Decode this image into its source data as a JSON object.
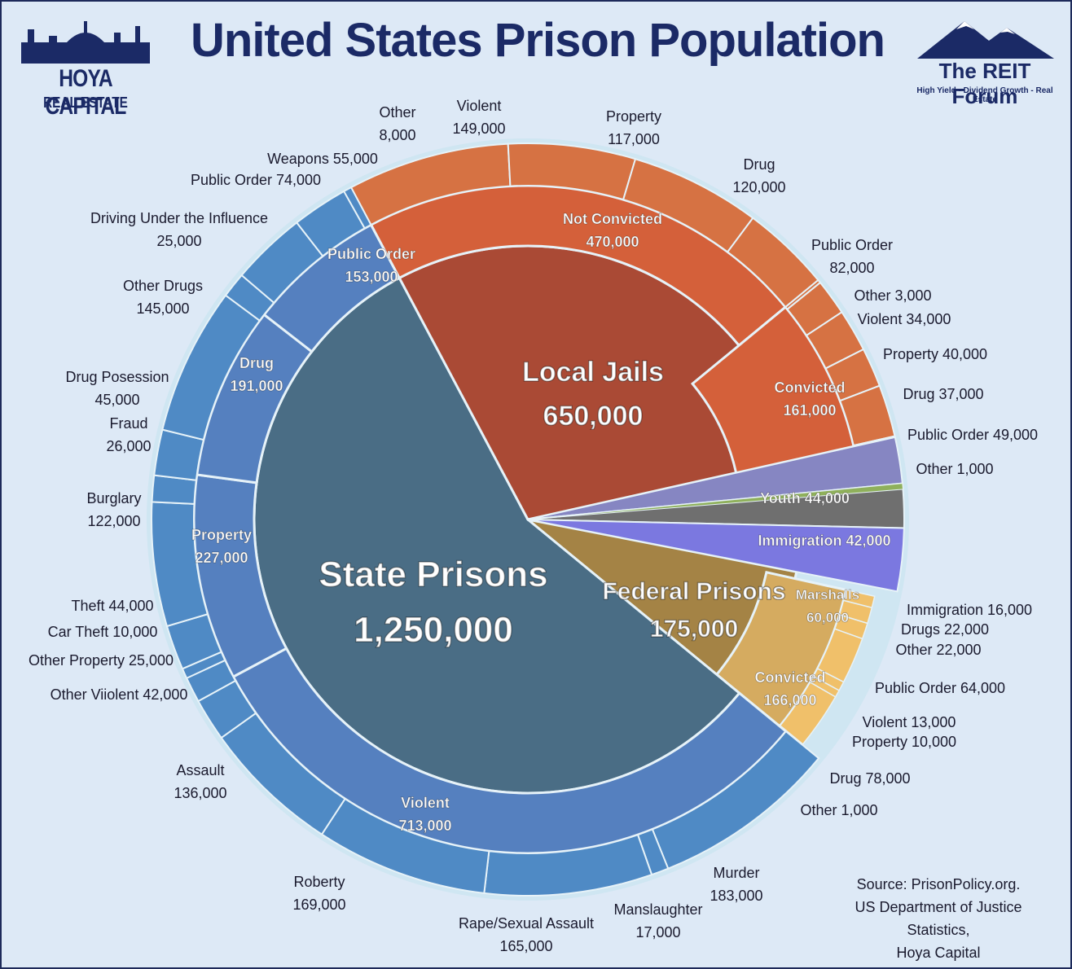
{
  "title": "United States Prison Population",
  "logo_left": {
    "line1": "HOYA CAPITAL",
    "line2": "REAL ESTATE"
  },
  "logo_right": {
    "line1": "The REIT Forum",
    "line2": "High Yield - Dividend Growth - Real Estate"
  },
  "source_lines": [
    "Source: PrisonPolicy.org.",
    "US Department of Justice Statistics,",
    "Hoya Capital"
  ],
  "colors": {
    "state": "#4a6d85",
    "state_mid": "#5580bf",
    "state_outer": "#4f8ac5",
    "jail": "#aa4a35",
    "jail_mid": "#d4603a",
    "jail_outer": "#d67243",
    "federal": "#a48345",
    "federal_mid": "#d5ab60",
    "federal_outer": "#f0c06a",
    "youth": "#8686c2",
    "immigration": "#6f6f6f",
    "marshalls": "#7b78e0",
    "other_green": "#8fb05b"
  },
  "chart_data": {
    "type": "pie",
    "subtype": "sunburst",
    "title": "United States Prison Population",
    "inner": [
      {
        "label": "State Prisons",
        "value": 1250000,
        "value_text": "1,250,000"
      },
      {
        "label": "Local Jails",
        "value": 650000,
        "value_text": "650,000"
      },
      {
        "label": "Federal Prisons",
        "value": 175000,
        "value_text": "175,000"
      },
      {
        "label": "Marshalls",
        "value": 60000,
        "value_text": "60,000"
      },
      {
        "label": "Immigration",
        "value": 42000,
        "value_text": "42,000"
      },
      {
        "label": "Youth",
        "value": 44000,
        "value_text": "44,000"
      }
    ],
    "middle": [
      {
        "parent": "State Prisons",
        "label": "Violent",
        "value": 713000,
        "value_text": "713,000"
      },
      {
        "parent": "State Prisons",
        "label": "Property",
        "value": 227000,
        "value_text": "227,000"
      },
      {
        "parent": "State Prisons",
        "label": "Drug",
        "value": 191000,
        "value_text": "191,000"
      },
      {
        "parent": "State Prisons",
        "label": "Public Order",
        "value": 153000,
        "value_text": "153,000"
      },
      {
        "parent": "Local Jails",
        "label": "Not Convicted",
        "value": 470000,
        "value_text": "470,000"
      },
      {
        "parent": "Local Jails",
        "label": "Convicted",
        "value": 161000,
        "value_text": "161,000"
      },
      {
        "parent": "Federal Prisons",
        "label": "Convicted",
        "value": 166000,
        "value_text": "166,000"
      }
    ],
    "outer": [
      {
        "parent": "State Prisons",
        "label": "Murder",
        "value": 183000,
        "value_text": "183,000"
      },
      {
        "parent": "State Prisons",
        "label": "Manslaughter",
        "value": 17000,
        "value_text": "17,000"
      },
      {
        "parent": "State Prisons",
        "label": "Rape/Sexual Assault",
        "value": 165000,
        "value_text": "165,000"
      },
      {
        "parent": "State Prisons",
        "label": "Roberty",
        "value": 169000,
        "value_text": "169,000"
      },
      {
        "parent": "State Prisons",
        "label": "Assault",
        "value": 136000,
        "value_text": "136,000"
      },
      {
        "parent": "State Prisons",
        "label": "Other Viiolent",
        "value": 42000,
        "value_text": "42,000"
      },
      {
        "parent": "State Prisons",
        "label": "Other Property",
        "value": 25000,
        "value_text": "25,000"
      },
      {
        "parent": "State Prisons",
        "label": "Car Theft",
        "value": 10000,
        "value_text": "10,000"
      },
      {
        "parent": "State Prisons",
        "label": "Theft",
        "value": 44000,
        "value_text": "44,000"
      },
      {
        "parent": "State Prisons",
        "label": "Burglary",
        "value": 122000,
        "value_text": "122,000"
      },
      {
        "parent": "State Prisons",
        "label": "Fraud",
        "value": 26000,
        "value_text": "26,000"
      },
      {
        "parent": "State Prisons",
        "label": "Drug Posession",
        "value": 45000,
        "value_text": "45,000"
      },
      {
        "parent": "State Prisons",
        "label": "Other Drugs",
        "value": 145000,
        "value_text": "145,000"
      },
      {
        "parent": "State Prisons",
        "label": "Driving Under the Influence",
        "value": 25000,
        "value_text": "25,000"
      },
      {
        "parent": "State Prisons",
        "label": "Public Order",
        "value": 74000,
        "value_text": "74,000"
      },
      {
        "parent": "State Prisons",
        "label": "Weapons",
        "value": 55000,
        "value_text": "55,000"
      },
      {
        "parent": "State Prisons",
        "label": "Other",
        "value": 8000,
        "value_text": "8,000"
      },
      {
        "parent": "Local Jails",
        "label": "Violent",
        "value": 149000,
        "value_text": "149,000"
      },
      {
        "parent": "Local Jails",
        "label": "Property",
        "value": 117000,
        "value_text": "117,000"
      },
      {
        "parent": "Local Jails",
        "label": "Drug",
        "value": 120000,
        "value_text": "120,000"
      },
      {
        "parent": "Local Jails",
        "label": "Public Order",
        "value": 82000,
        "value_text": "82,000"
      },
      {
        "parent": "Local Jails",
        "label": "Other",
        "value": 3000,
        "value_text": "3,000"
      },
      {
        "parent": "Local Jails",
        "label": "Violent",
        "value": 34000,
        "value_text": "34,000"
      },
      {
        "parent": "Local Jails",
        "label": "Property",
        "value": 40000,
        "value_text": "40,000"
      },
      {
        "parent": "Local Jails",
        "label": "Drug",
        "value": 37000,
        "value_text": "37,000"
      },
      {
        "parent": "Local Jails",
        "label": "Public Order",
        "value": 49000,
        "value_text": "49,000"
      },
      {
        "parent": "Local Jails",
        "label": "Other",
        "value": 1000,
        "value_text": "1,000"
      },
      {
        "parent": "Federal Prisons",
        "label": "Immigration",
        "value": 16000,
        "value_text": "16,000"
      },
      {
        "parent": "Federal Prisons",
        "label": "Drugs",
        "value": 22000,
        "value_text": "22,000"
      },
      {
        "parent": "Federal Prisons",
        "label": "Other",
        "value": 22000,
        "value_text": "22,000"
      },
      {
        "parent": "Federal Prisons",
        "label": "Public Order",
        "value": 64000,
        "value_text": "64,000"
      },
      {
        "parent": "Federal Prisons",
        "label": "Violent",
        "value": 13000,
        "value_text": "13,000"
      },
      {
        "parent": "Federal Prisons",
        "label": "Property",
        "value": 10000,
        "value_text": "10,000"
      },
      {
        "parent": "Federal Prisons",
        "label": "Drug",
        "value": 78000,
        "value_text": "78,000"
      },
      {
        "parent": "Federal Prisons",
        "label": "Other",
        "value": 1000,
        "value_text": "1,000"
      }
    ]
  }
}
